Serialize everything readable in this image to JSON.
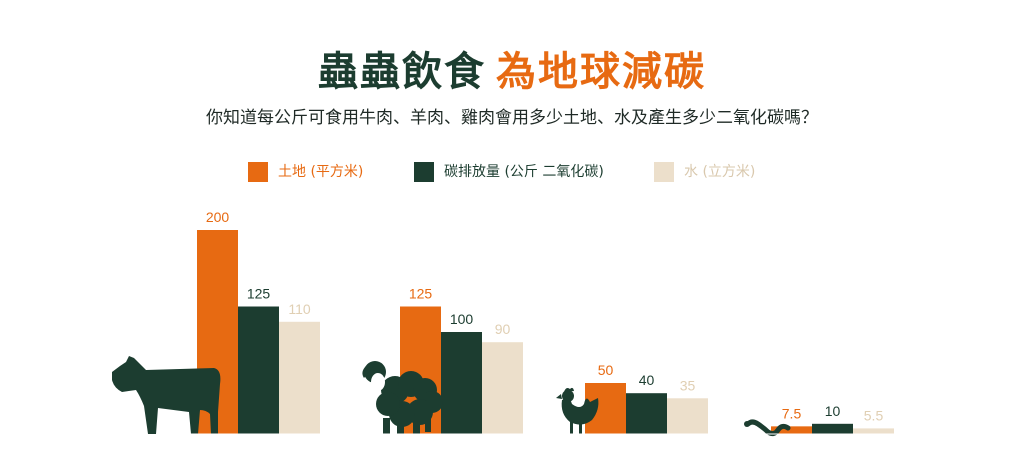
{
  "title": {
    "part1": "蟲蟲飲食",
    "part2": "為地球減碳"
  },
  "subtitle": "你知道每公斤可食用牛肉、羊肉、雞肉會用多少土地、水及產生多少二氧化碳嗎？",
  "colors": {
    "land": "#e76a12",
    "carbon": "#1c3d30",
    "water": "#ecdfcb",
    "dark": "#1c3d30"
  },
  "chart_data": {
    "type": "bar",
    "title": "",
    "xlabel": "",
    "ylabel": "",
    "ylim": [
      0,
      200
    ],
    "grid": false,
    "legend_position": "top",
    "categories": [
      "牛",
      "羊",
      "雞",
      "蟲"
    ],
    "category_icons": [
      "cow-icon",
      "sheep-icon",
      "chicken-icon",
      "worm-icon"
    ],
    "series": [
      {
        "name": "土地 (平方米)",
        "color": "#e76a12",
        "values": [
          200,
          125,
          50,
          7.5
        ],
        "labels": [
          "200",
          "125",
          "50",
          "7.5"
        ],
        "label_color": "#e76a12"
      },
      {
        "name": "碳排放量 (公斤 二氧化碳)",
        "color": "#1c3d30",
        "values": [
          125,
          100,
          40,
          10
        ],
        "labels": [
          "125",
          "100",
          "40",
          "10"
        ],
        "label_color": "#1c3d30"
      },
      {
        "name": "水 (立方米)",
        "color": "#ecdfcb",
        "values": [
          110,
          90,
          35,
          5.5
        ],
        "labels": [
          "110",
          "90",
          "35",
          "5.5"
        ],
        "label_color": "#e0cfb3"
      }
    ]
  }
}
